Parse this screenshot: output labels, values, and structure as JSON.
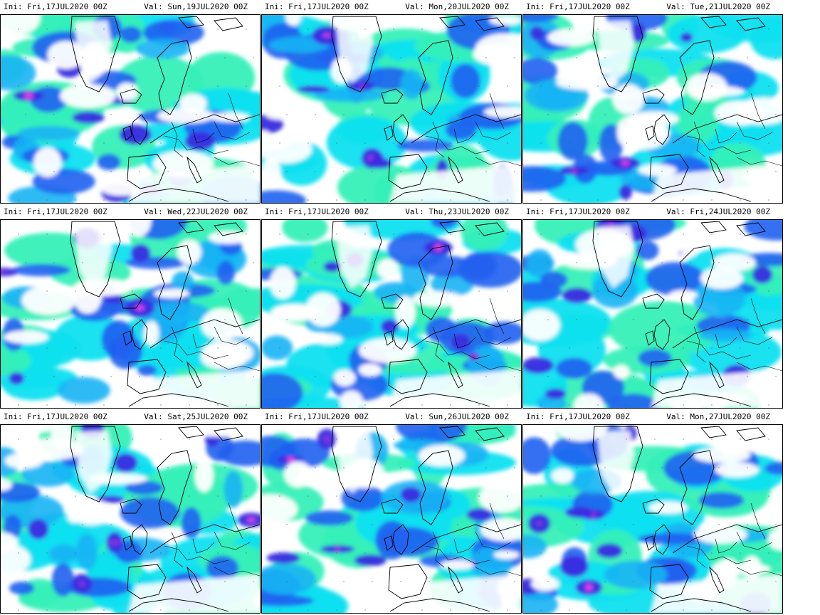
{
  "panels": [
    {
      "ini": "Ini: Fri,17JUL2020 00Z",
      "val": "Val: Sun,19JUL2020 00Z"
    },
    {
      "ini": "Ini: Fri,17JUL2020 00Z",
      "val": "Val: Mon,20JUL2020 00Z"
    },
    {
      "ini": "Ini: Fri,17JUL2020 00Z",
      "val": "Val: Tue,21JUL2020 00Z"
    },
    {
      "ini": "Ini: Fri,17JUL2020 00Z",
      "val": "Val: Wed,22JUL2020 00Z"
    },
    {
      "ini": "Ini: Fri,17JUL2020 00Z",
      "val": "Val: Thu,23JUL2020 00Z"
    },
    {
      "ini": "Ini: Fri,17JUL2020 00Z",
      "val": "Val: Fri,24JUL2020 00Z"
    },
    {
      "ini": "Ini: Fri,17JUL2020 00Z",
      "val": "Val: Sat,25JUL2020 00Z"
    },
    {
      "ini": "Ini: Fri,17JUL2020 00Z",
      "val": "Val: Sun,26JUL2020 00Z"
    },
    {
      "ini": "Ini: Fri,17JUL2020 00Z",
      "val": "Val: Mon,27JUL2020 00Z"
    }
  ],
  "colors": {
    "light": "#35f0b8",
    "cyan": "#10e0f0",
    "sky": "#18b4f4",
    "blue": "#2060f0",
    "deep": "#3a2ce0",
    "purple": "#9030e0",
    "magenta": "#e040e8",
    "coast": "#000000",
    "land": "#ffffff"
  }
}
